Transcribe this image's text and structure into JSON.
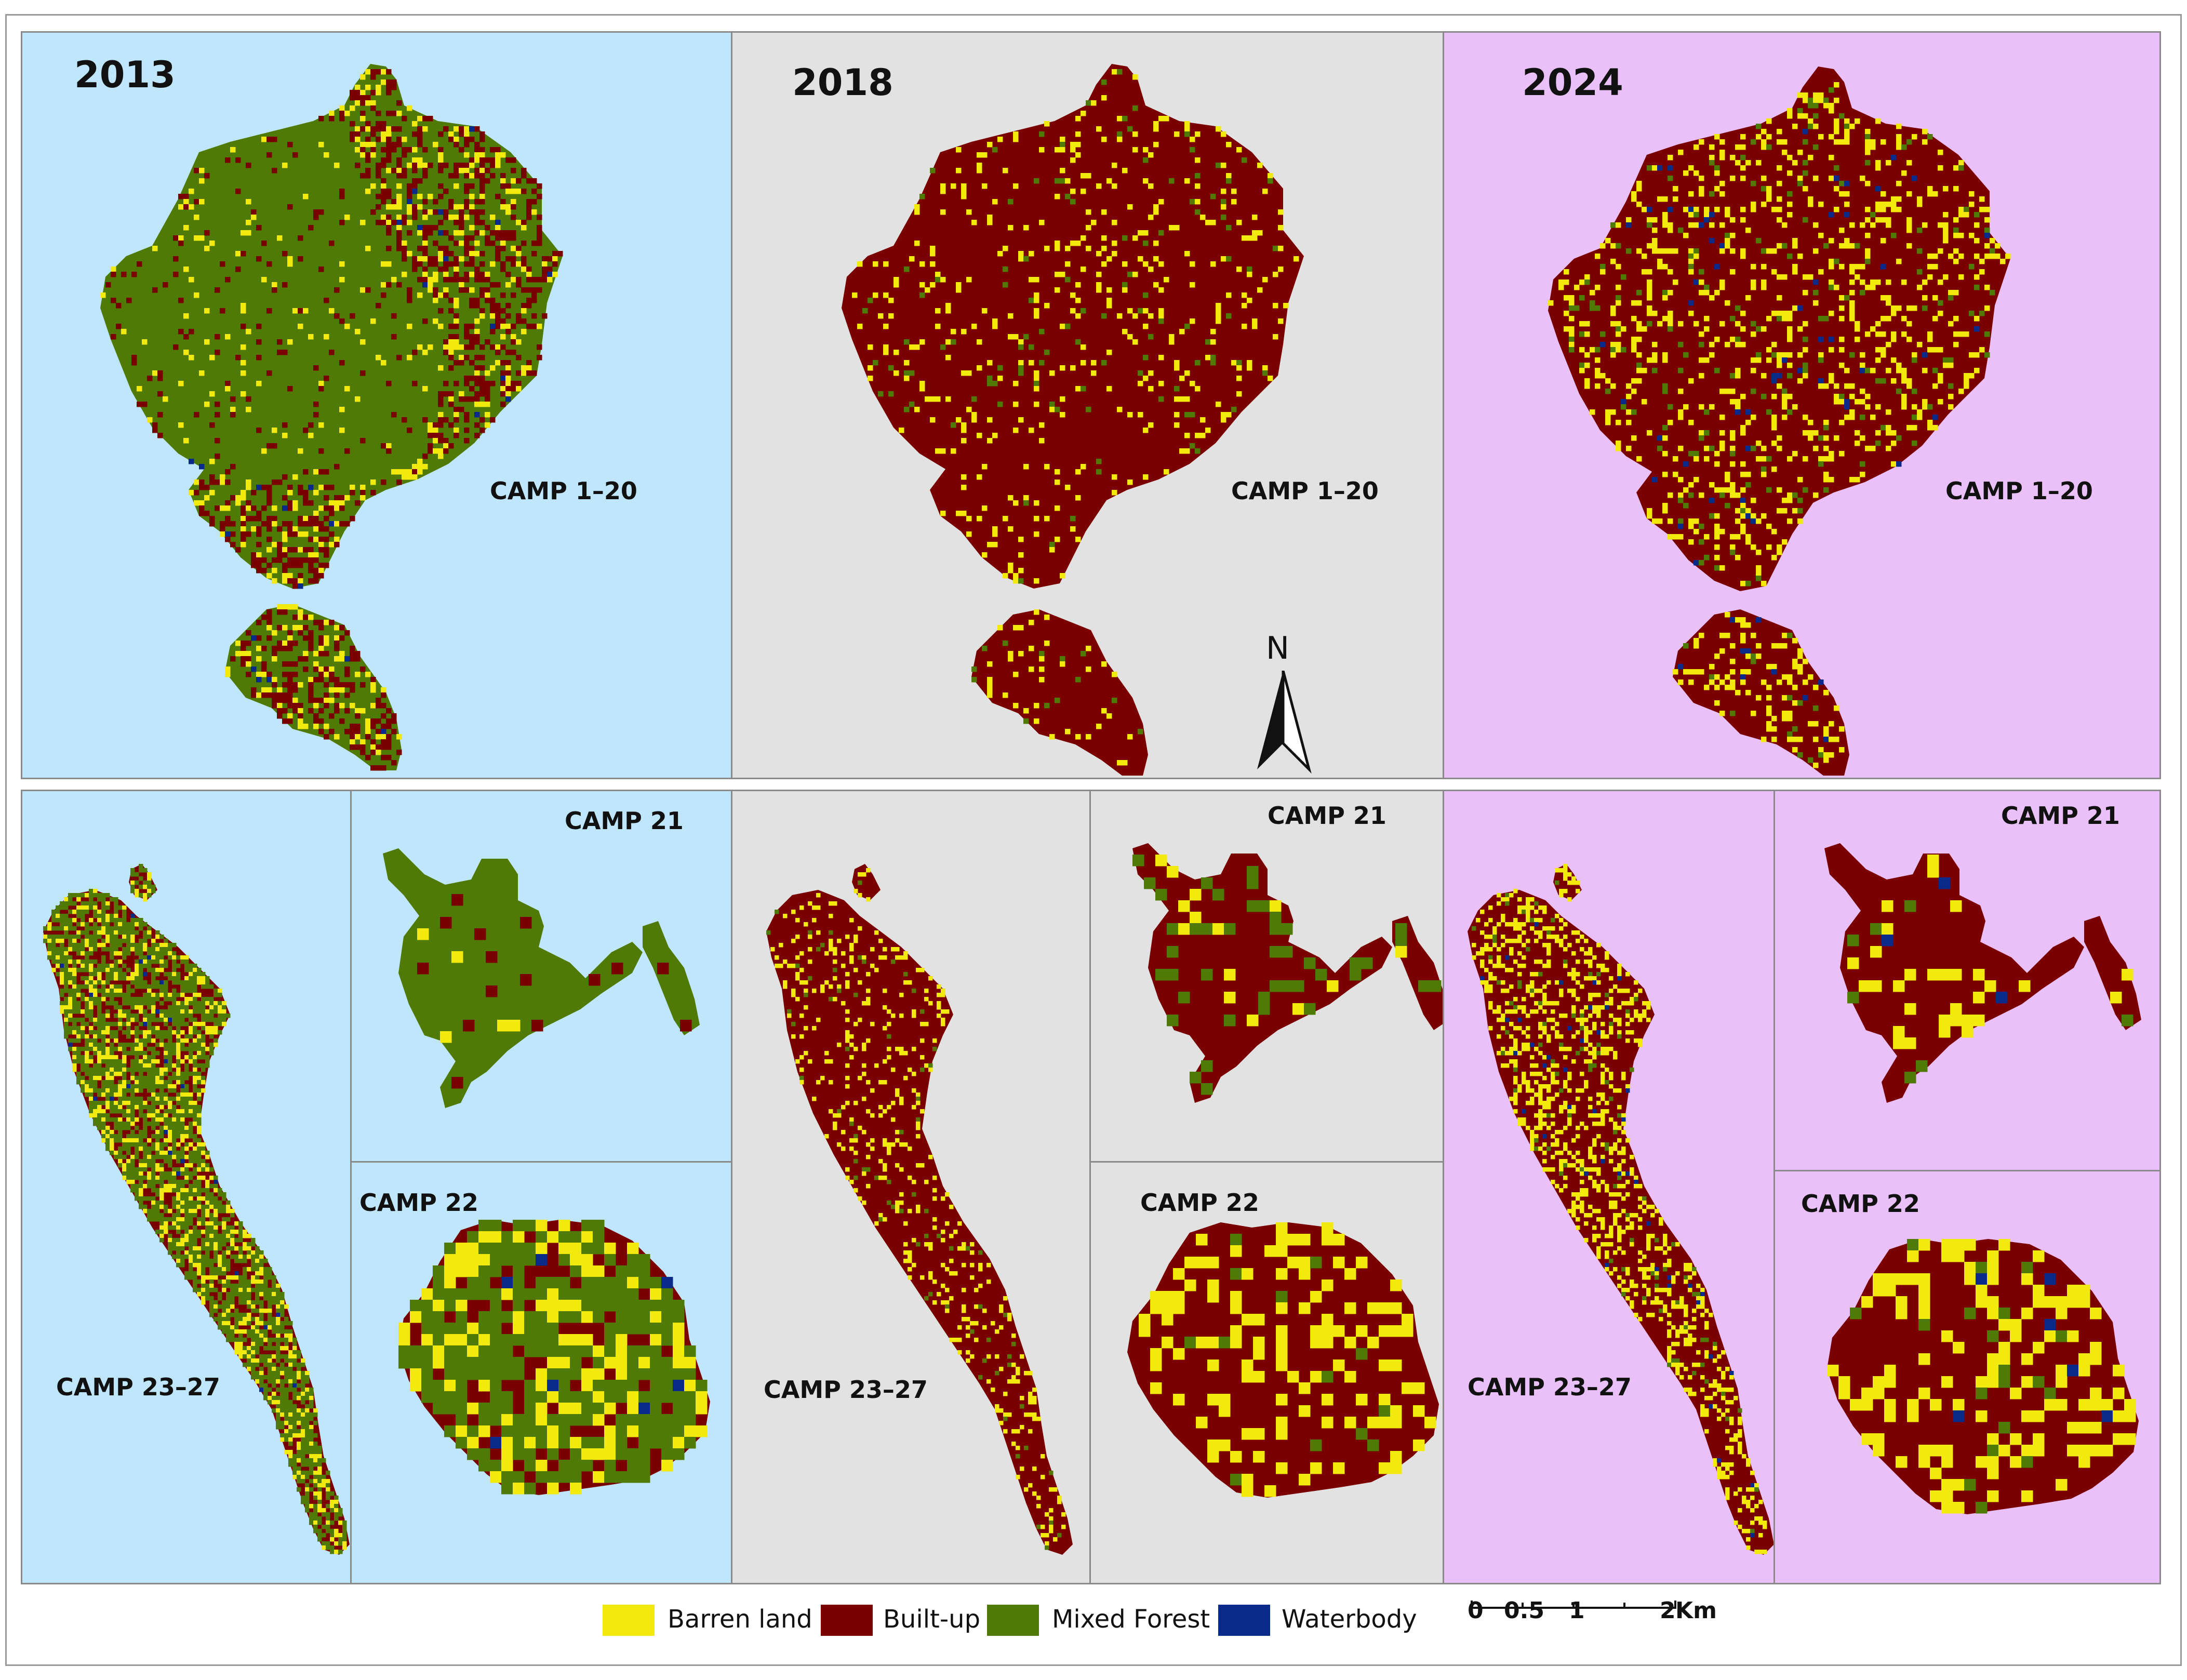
{
  "colors": {
    "barren": "#f2ea0c",
    "builtup": "#7a0000",
    "forest": "#4f7a06",
    "water": "#0a2a8a",
    "bg_2013": "#bfe6fb",
    "bg_2018": "#e2e2e2",
    "bg_2024": "#e9c0f8"
  },
  "years": [
    "2013",
    "2018",
    "2024"
  ],
  "camps": {
    "camp_1_20": "CAMP 1–20",
    "camp_21": "CAMP 21",
    "camp_22": "CAMP 22",
    "camp_23_27": "CAMP 23–27"
  },
  "class_mix": {
    "2013": {
      "barren": 0.14,
      "builtup": 0.3,
      "forest": 0.55,
      "water": 0.01
    },
    "2018": {
      "barren": 0.07,
      "builtup": 0.91,
      "forest": 0.02,
      "water": 0.0
    },
    "2024": {
      "barren": 0.16,
      "builtup": 0.8,
      "forest": 0.03,
      "water": 0.01
    }
  },
  "north_arrow": {
    "label": "N",
    "icon": "north-arrow-icon"
  },
  "legend": [
    {
      "label": "Barren land",
      "color": "#f2ea0c"
    },
    {
      "label": "Built-up",
      "color": "#7a0000"
    },
    {
      "label": "Mixed Forest",
      "color": "#4f7a06"
    },
    {
      "label": "Waterbody",
      "color": "#0a2a8a"
    }
  ],
  "scale_bar": {
    "ticks": [
      "0",
      "0.5",
      "1",
      "2"
    ],
    "unit": "Km"
  }
}
